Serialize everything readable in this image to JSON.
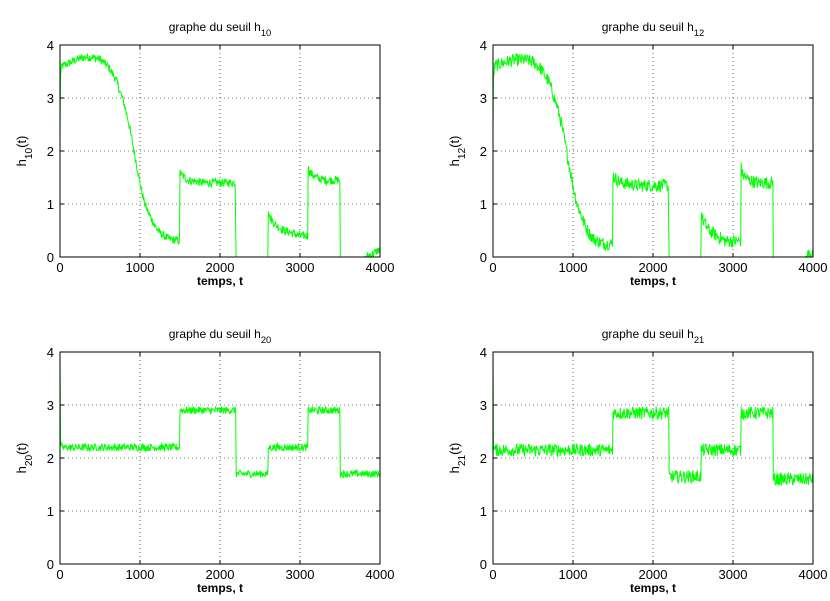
{
  "figure": {
    "background": "#ffffff",
    "line_color": "#00ff00",
    "grid_style": "dotted"
  },
  "chart_data": [
    {
      "type": "line",
      "title": "graphe du seuil h",
      "title_subscript": "10",
      "ylabel": "h",
      "ylabel_subscript": "10",
      "ylabel_suffix": "(t)",
      "xlabel": "temps, t",
      "xlim": [
        0,
        4000
      ],
      "ylim": [
        0,
        4
      ],
      "xticks": [
        0,
        1000,
        2000,
        3000,
        4000
      ],
      "yticks": [
        0,
        1,
        2,
        3,
        4
      ],
      "grid": true,
      "series": [
        {
          "color": "#00ff00",
          "x": [
            0,
            5,
            20,
            100,
            200,
            300,
            400,
            500,
            600,
            700,
            800,
            850,
            900,
            950,
            1000,
            1050,
            1100,
            1150,
            1200,
            1250,
            1300,
            1350,
            1400,
            1450,
            1499,
            1500,
            1520,
            1600,
            1800,
            2000,
            2190,
            2200,
            2300,
            2599,
            2600,
            2620,
            2700,
            2800,
            2900,
            3000,
            3099,
            3100,
            3120,
            3200,
            3300,
            3499,
            3500,
            3800,
            3900,
            4000
          ],
          "y": [
            2.3,
            3.4,
            3.6,
            3.65,
            3.72,
            3.77,
            3.77,
            3.73,
            3.6,
            3.35,
            2.9,
            2.6,
            2.2,
            1.8,
            1.4,
            1.05,
            0.85,
            0.7,
            0.55,
            0.45,
            0.4,
            0.35,
            0.33,
            0.32,
            0.3,
            1.6,
            1.55,
            1.45,
            1.4,
            1.4,
            1.4,
            0.0,
            0.0,
            0.0,
            0.95,
            0.75,
            0.6,
            0.5,
            0.45,
            0.4,
            0.4,
            1.7,
            1.6,
            1.5,
            1.45,
            1.45,
            0.0,
            0.0,
            0.05,
            0.15
          ],
          "noise": 0.08
        }
      ]
    },
    {
      "type": "line",
      "title": "graphe du seuil h",
      "title_subscript": "12",
      "ylabel": "h",
      "ylabel_subscript": "12",
      "ylabel_suffix": "(t)",
      "xlabel": "temps, t",
      "xlim": [
        0,
        4000
      ],
      "ylim": [
        0,
        4
      ],
      "xticks": [
        0,
        1000,
        2000,
        3000,
        4000
      ],
      "yticks": [
        0,
        1,
        2,
        3,
        4
      ],
      "grid": true,
      "series": [
        {
          "color": "#00ff00",
          "x": [
            0,
            5,
            20,
            100,
            200,
            300,
            400,
            500,
            600,
            700,
            800,
            850,
            900,
            950,
            1000,
            1050,
            1100,
            1150,
            1200,
            1250,
            1300,
            1350,
            1400,
            1450,
            1499,
            1500,
            1520,
            1600,
            1800,
            2000,
            2190,
            2200,
            2300,
            2599,
            2600,
            2620,
            2700,
            2800,
            2900,
            3000,
            3099,
            3100,
            3120,
            3200,
            3300,
            3499,
            3500,
            3800,
            3900,
            4000
          ],
          "y": [
            2.3,
            3.4,
            3.6,
            3.65,
            3.7,
            3.72,
            3.72,
            3.68,
            3.55,
            3.3,
            2.85,
            2.55,
            2.15,
            1.75,
            1.35,
            1.0,
            0.8,
            0.6,
            0.45,
            0.35,
            0.3,
            0.27,
            0.25,
            0.25,
            0.25,
            1.55,
            1.5,
            1.4,
            1.35,
            1.35,
            1.35,
            0.0,
            0.0,
            0.0,
            0.95,
            0.7,
            0.5,
            0.4,
            0.3,
            0.3,
            0.3,
            1.7,
            1.55,
            1.45,
            1.4,
            1.4,
            0.0,
            0.0,
            0.0,
            0.1
          ],
          "noise": 0.12
        }
      ]
    },
    {
      "type": "line",
      "title": "graphe du seuil h",
      "title_subscript": "20",
      "ylabel": "h",
      "ylabel_subscript": "20",
      "ylabel_suffix": "(t)",
      "xlabel": "temps, t",
      "xlim": [
        0,
        4000
      ],
      "ylim": [
        0,
        4
      ],
      "xticks": [
        0,
        1000,
        2000,
        3000,
        4000
      ],
      "yticks": [
        0,
        1,
        2,
        3,
        4
      ],
      "grid": true,
      "series": [
        {
          "color": "#00ff00",
          "x": [
            0,
            5,
            20,
            500,
            1000,
            1499,
            1500,
            1800,
            2199,
            2200,
            2599,
            2600,
            3099,
            3100,
            3499,
            3500,
            4000
          ],
          "y": [
            4.0,
            2.3,
            2.2,
            2.2,
            2.2,
            2.2,
            2.9,
            2.9,
            2.9,
            1.7,
            1.7,
            2.2,
            2.2,
            2.9,
            2.9,
            1.7,
            1.7
          ],
          "noise": 0.07
        }
      ]
    },
    {
      "type": "line",
      "title": "graphe du seuil h",
      "title_subscript": "21",
      "ylabel": "h",
      "ylabel_subscript": "21",
      "ylabel_suffix": "(t)",
      "xlabel": "temps, t",
      "xlim": [
        0,
        4000
      ],
      "ylim": [
        0,
        4
      ],
      "xticks": [
        0,
        1000,
        2000,
        3000,
        4000
      ],
      "yticks": [
        0,
        1,
        2,
        3,
        4
      ],
      "grid": true,
      "series": [
        {
          "color": "#00ff00",
          "x": [
            0,
            5,
            20,
            500,
            1000,
            1499,
            1500,
            1800,
            2199,
            2200,
            2599,
            2600,
            3099,
            3100,
            3499,
            3500,
            4000
          ],
          "y": [
            4.0,
            2.2,
            2.15,
            2.15,
            2.15,
            2.15,
            2.85,
            2.85,
            2.85,
            1.65,
            1.65,
            2.15,
            2.15,
            2.85,
            2.85,
            1.6,
            1.6
          ],
          "noise": 0.12
        }
      ]
    }
  ]
}
